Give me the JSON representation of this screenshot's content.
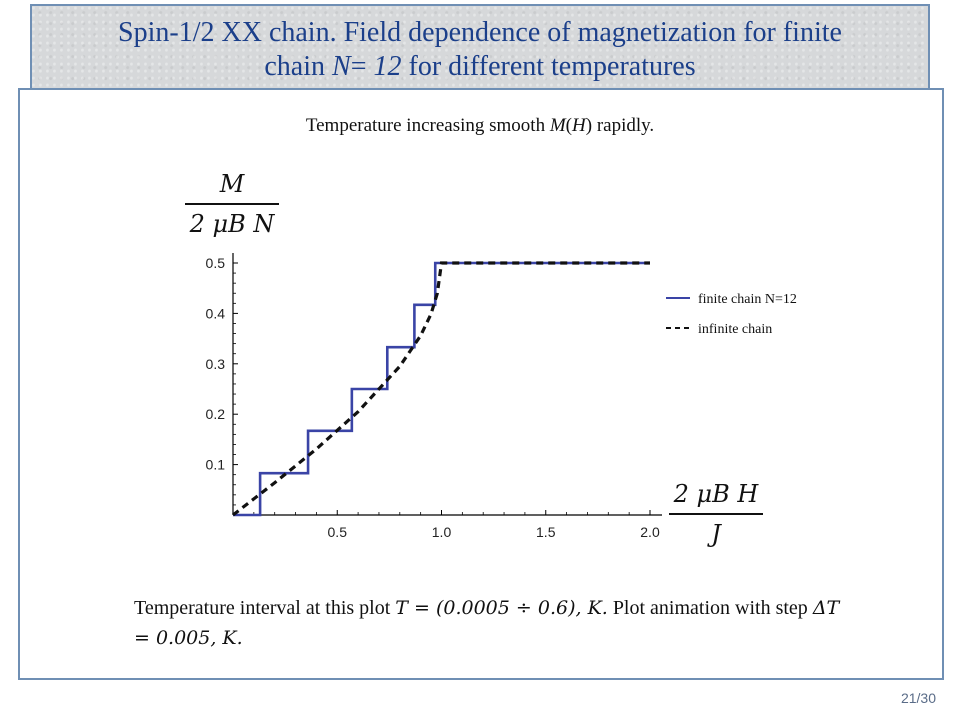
{
  "slide": {
    "title_line1": "Spin-1/2 XX chain. Field dependence of magnetization for finite",
    "title_line2_prefix": "chain ",
    "title_line2_var": "N",
    "title_line2_eq": "= ",
    "title_line2_val": "12",
    "title_line2_suffix": " for different temperatures",
    "subtitle_prefix": "Temperature increasing smooth ",
    "subtitle_var": "M",
    "subtitle_paren_open": "(",
    "subtitle_arg": "H",
    "subtitle_paren_close": ")",
    "subtitle_suffix": " rapidly.",
    "caption_part1": "Temperature interval at this plot ",
    "caption_math1": "T = (0.0005 ÷ 0.6), K.",
    "caption_part2": " Plot animation with step ",
    "caption_math2": "ΔT = 0.005, K.",
    "page_number": "21/30"
  },
  "colors": {
    "title_text": "#1b3f8a",
    "finite": "#3a44a6",
    "infinite": "#111111",
    "frame": "#6f8fb4"
  },
  "chart_data": {
    "type": "line",
    "ylabel_num": "M",
    "ylabel_den": "2 μB N",
    "xlabel_num": "2 μB H",
    "xlabel_den": "J",
    "xlim": [
      0,
      2.0
    ],
    "ylim": [
      0,
      0.5
    ],
    "x_ticks": [
      "0.5",
      "1.0",
      "1.5",
      "2.0"
    ],
    "x_tick_values": [
      0.5,
      1.0,
      1.5,
      2.0
    ],
    "y_ticks": [
      "0.1",
      "0.2",
      "0.3",
      "0.4",
      "0.5"
    ],
    "y_tick_values": [
      0.1,
      0.2,
      0.3,
      0.4,
      0.5
    ],
    "legend_position": "right",
    "series": [
      {
        "name": "finite chain N=12",
        "style": "solid",
        "x": [
          0,
          0.13,
          0.13,
          0.36,
          0.36,
          0.57,
          0.57,
          0.74,
          0.74,
          0.87,
          0.87,
          0.97,
          0.97,
          2.0
        ],
        "y": [
          0,
          0,
          0.083,
          0.083,
          0.167,
          0.167,
          0.25,
          0.25,
          0.333,
          0.333,
          0.417,
          0.417,
          0.5,
          0.5
        ]
      },
      {
        "name": "infinite chain",
        "style": "dashed",
        "x": [
          0,
          0.2,
          0.4,
          0.6,
          0.8,
          0.9,
          0.95,
          0.98,
          1.0,
          2.0
        ],
        "y": [
          0,
          0.064,
          0.131,
          0.205,
          0.295,
          0.356,
          0.399,
          0.44,
          0.5,
          0.5
        ]
      }
    ]
  }
}
